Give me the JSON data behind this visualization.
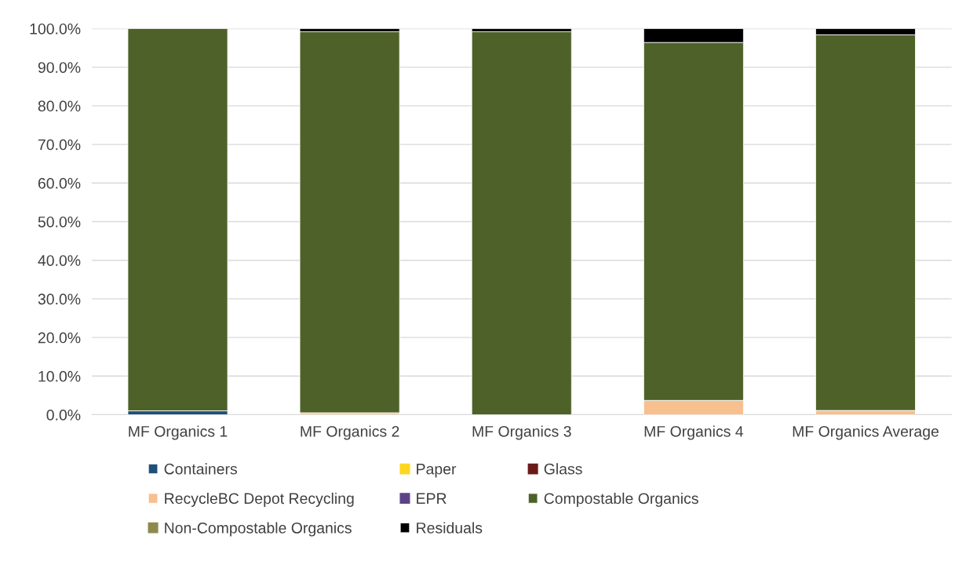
{
  "chart_data": {
    "type": "bar",
    "stacked": true,
    "categories": [
      "MF Organics 1",
      "MF Organics 2",
      "MF Organics 3",
      "MF Organics 4",
      "MF Organics Average"
    ],
    "series": [
      {
        "name": "Containers",
        "color": "#1f4e79",
        "values": [
          1.0,
          0,
          0,
          0,
          0
        ]
      },
      {
        "name": "Paper",
        "color": "#ffd61f",
        "values": [
          0,
          0,
          0,
          0,
          0
        ]
      },
      {
        "name": "Glass",
        "color": "#6b1a1a",
        "values": [
          0,
          0,
          0,
          0,
          0
        ]
      },
      {
        "name": "RecycleBC Depot Recycling",
        "color": "#f8bf8f",
        "values": [
          0,
          0.5,
          0,
          3.7,
          1.1
        ]
      },
      {
        "name": "EPR",
        "color": "#5c4387",
        "values": [
          0,
          0,
          0,
          0,
          0
        ]
      },
      {
        "name": "Compostable Organics",
        "color": "#4e6128",
        "values": [
          99.0,
          98.7,
          99.2,
          92.7,
          97.3
        ]
      },
      {
        "name": "Non-Compostable Organics",
        "color": "#8c8a4d",
        "values": [
          0,
          0,
          0,
          0,
          0
        ]
      },
      {
        "name": "Residuals",
        "color": "#000000",
        "values": [
          0,
          0.8,
          0.8,
          3.6,
          1.6
        ]
      }
    ],
    "ylim": [
      0,
      100
    ],
    "yticks": [
      {
        "value": 0,
        "label": "0.0%"
      },
      {
        "value": 10,
        "label": "10.0%"
      },
      {
        "value": 20,
        "label": "20.0%"
      },
      {
        "value": 30,
        "label": "30.0%"
      },
      {
        "value": 40,
        "label": "40.0%"
      },
      {
        "value": 50,
        "label": "50.0%"
      },
      {
        "value": 60,
        "label": "60.0%"
      },
      {
        "value": 70,
        "label": "70.0%"
      },
      {
        "value": 80,
        "label": "80.0%"
      },
      {
        "value": 90,
        "label": "90.0%"
      },
      {
        "value": 100,
        "label": "100.0%"
      }
    ],
    "grid": "y",
    "legend": "bottom"
  }
}
